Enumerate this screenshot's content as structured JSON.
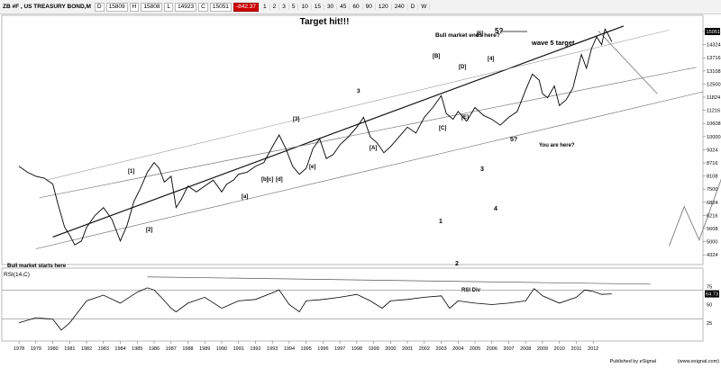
{
  "toolbar": {
    "symbol": "ZB #F , US TREASURY BOND,M",
    "quotes": [
      "D",
      "15809",
      "H",
      "15808",
      "L",
      "14923",
      "C",
      "15051"
    ],
    "change": "-842.37",
    "intervals": [
      "1",
      "2",
      "3",
      "5",
      "10",
      "15",
      "30",
      "45",
      "60",
      "90",
      "120",
      "240",
      "D",
      "W"
    ]
  },
  "chart_data": {
    "type": "line",
    "title": "Target hit!!!",
    "x_ticks": [
      "1978",
      "1979",
      "1980",
      "1981",
      "1982",
      "1983",
      "1984",
      "1985",
      "1986",
      "1987",
      "1988",
      "1989",
      "1990",
      "1991",
      "1992",
      "1993",
      "1994",
      "1995",
      "1996",
      "1997",
      "1998",
      "1999",
      "2000",
      "2001",
      "2002",
      "2003",
      "2004",
      "2005",
      "2006",
      "2007",
      "2008",
      "2009",
      "2010",
      "2011",
      "2012"
    ],
    "xlim": [
      1977.3,
      2018.5
    ],
    "price_panel": {
      "ylim": [
        3700,
        16400
      ],
      "y_ticks": [
        "15051",
        "14324",
        "13716",
        "13108",
        "12500",
        "11824",
        "11216",
        "10608",
        "10000",
        "9324",
        "8716",
        "8108",
        "7500",
        "6824",
        "6216",
        "5608",
        "5000",
        "4324"
      ],
      "last_value": "15051",
      "series": [
        {
          "x": [
            1978.0,
            1978.5,
            1979.0,
            1979.5,
            1980.0,
            1980.3,
            1980.7,
            1981.0,
            1981.3,
            1981.7,
            1982.0,
            1982.5,
            1983.0,
            1983.5,
            1984.0,
            1984.4,
            1984.8,
            1985.2,
            1985.6,
            1986.0,
            1986.3,
            1986.6,
            1987.0,
            1987.3,
            1987.6,
            1988.0,
            1988.5,
            1989.0,
            1989.5,
            1990.0,
            1990.3,
            1990.7,
            1991.0,
            1991.5,
            1992.0,
            1992.5,
            1993.0,
            1993.4,
            1993.8,
            1994.2,
            1994.6,
            1995.0,
            1995.4,
            1995.8,
            1996.2,
            1996.6,
            1997.0,
            1997.5,
            1998.0,
            1998.4,
            1998.8,
            1999.2,
            1999.6,
            2000.0,
            2000.5,
            2001.0,
            2001.5,
            2002.0,
            2002.5,
            2003.0,
            2003.3,
            2003.7,
            2004.0,
            2004.5,
            2005.0,
            2005.5,
            2006.0,
            2006.5,
            2007.0,
            2007.5,
            2008.0,
            2008.4,
            2008.8,
            2009.0,
            2009.3,
            2009.7,
            2010.0,
            2010.4,
            2010.8,
            2011.0,
            2011.3,
            2011.6,
            2011.9,
            2012.2,
            2012.5,
            2012.7,
            2012.9,
            2013.1
          ],
          "y": [
            8700,
            8400,
            8200,
            8100,
            7800,
            6800,
            5600,
            5200,
            4700,
            4900,
            5600,
            6200,
            6600,
            6000,
            4900,
            5700,
            6900,
            7600,
            8400,
            8900,
            8600,
            7900,
            8200,
            6600,
            7000,
            7700,
            7400,
            7700,
            8000,
            7400,
            7800,
            8000,
            8300,
            8400,
            8700,
            8900,
            9700,
            10300,
            9600,
            8700,
            8300,
            8600,
            9600,
            10100,
            9100,
            9300,
            9800,
            10200,
            10700,
            11200,
            10200,
            9900,
            9400,
            9700,
            10200,
            10700,
            10400,
            11200,
            11700,
            12300,
            11400,
            11100,
            11500,
            11000,
            11700,
            11300,
            11100,
            10800,
            11200,
            11500,
            12600,
            13400,
            13100,
            12400,
            12200,
            12800,
            11800,
            12100,
            12700,
            13400,
            14400,
            13700,
            14700,
            15300,
            14900,
            15700,
            15400,
            15051
          ]
        }
      ]
    },
    "rsi_panel": {
      "label": "RSI(14,C)",
      "ylim": [
        0,
        100
      ],
      "y_ticks": [
        "75",
        "50",
        "25"
      ],
      "last_value": "64.73",
      "series": [
        {
          "x": [
            1978.0,
            1979.0,
            1980.0,
            1980.5,
            1981.0,
            1981.5,
            1982.0,
            1983.0,
            1984.0,
            1985.0,
            1985.6,
            1986.0,
            1986.5,
            1987.0,
            1987.3,
            1988.0,
            1989.0,
            1990.0,
            1991.0,
            1992.0,
            1993.0,
            1993.4,
            1994.0,
            1994.6,
            1995.0,
            1996.0,
            1997.0,
            1998.0,
            1998.8,
            1999.5,
            2000.0,
            2001.0,
            2002.0,
            2003.0,
            2003.5,
            2004.0,
            2005.0,
            2006.0,
            2007.0,
            2008.0,
            2008.5,
            2009.0,
            2010.0,
            2011.0,
            2011.5,
            2012.0,
            2012.5,
            2013.1
          ],
          "y": [
            25,
            32,
            30,
            15,
            25,
            40,
            55,
            63,
            52,
            67,
            73,
            70,
            58,
            45,
            40,
            52,
            60,
            45,
            55,
            57,
            66,
            70,
            50,
            40,
            55,
            57,
            60,
            64,
            55,
            45,
            55,
            57,
            60,
            62,
            45,
            55,
            52,
            50,
            52,
            55,
            72,
            62,
            52,
            60,
            70,
            68,
            64,
            64.73
          ]
        }
      ],
      "overbought": 70,
      "oversold": 30
    },
    "annotations": [
      "Bull market ends here?",
      "wave 5 target",
      "You are here?",
      "Bull market starts here",
      "RSI Div",
      "[1]",
      "[2]",
      "[3]",
      "[4]",
      "[5]",
      "[A]",
      "[B]",
      "[C]",
      "[D]",
      "[E]",
      "[a]",
      "[b]",
      "[c]",
      "[d]",
      "[e]",
      "1",
      "2",
      "3",
      "4",
      "5?",
      "3",
      "5?"
    ],
    "grid": false
  },
  "footer": {
    "published": "Published by eSignal",
    "url": "(www.esignal.com)"
  },
  "colors": {
    "price": "#000000",
    "channel": "#666666",
    "projection": "#888888",
    "toolbar": "#f2f2f2",
    "negative": "#d00000"
  }
}
